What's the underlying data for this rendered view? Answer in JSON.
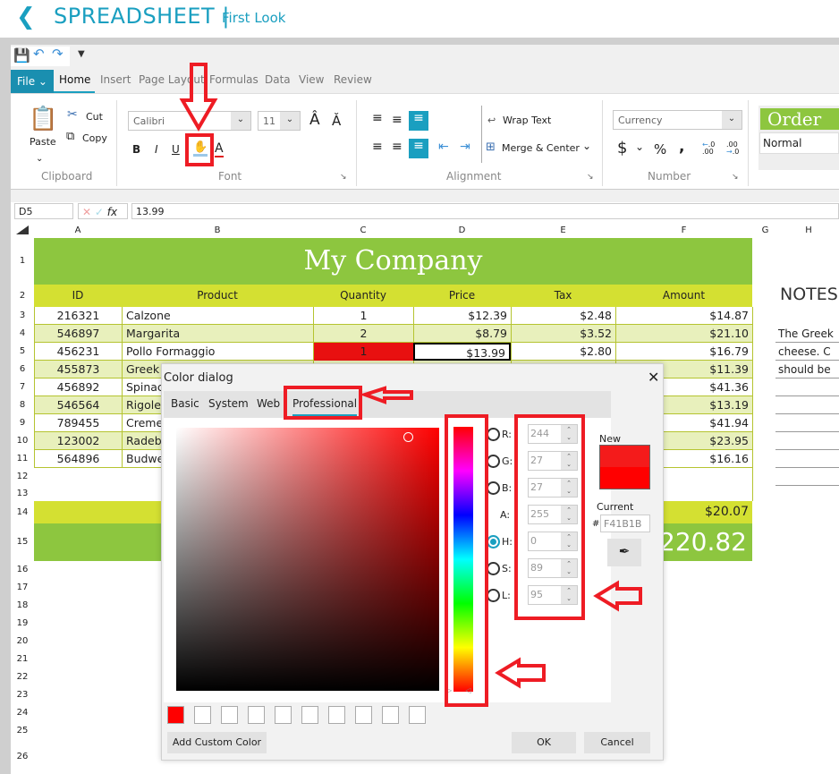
{
  "header": {
    "back_icon": "chevron-left-icon",
    "title": "SPREADSHEET |",
    "subtitle": "First Look"
  },
  "quick_access": {
    "save_icon": "save-icon",
    "undo_icon": "undo-icon",
    "redo_icon": "redo-icon",
    "customize_icon": "dropdown-icon"
  },
  "tabs": {
    "file": "File",
    "items": [
      "Home",
      "Insert",
      "Page Layout",
      "Formulas",
      "Data",
      "View",
      "Review"
    ],
    "active": "Home"
  },
  "ribbon": {
    "clipboard": {
      "label": "Clipboard",
      "paste": "Paste",
      "cut": "Cut",
      "copy": "Copy"
    },
    "font": {
      "label": "Font",
      "family": "Calibri",
      "size": "11",
      "bold": "B",
      "italic": "I",
      "underline": "U",
      "font_color": "A"
    },
    "alignment": {
      "label": "Alignment",
      "wrap": "Wrap Text",
      "merge": "Merge & Center"
    },
    "number": {
      "label": "Number",
      "format": "Currency",
      "currency": "$",
      "percent": "%",
      "comma": ","
    },
    "styles": {
      "order": "Order",
      "normal": "Normal"
    }
  },
  "formula_bar": {
    "cell_ref": "D5",
    "fx": "fx",
    "value": "13.99"
  },
  "sheet": {
    "columns": [
      "A",
      "B",
      "C",
      "D",
      "E",
      "F",
      "G",
      "H"
    ],
    "title": "My Company",
    "headers": [
      "ID",
      "Product",
      "Quantity",
      "Price",
      "Tax",
      "Amount"
    ],
    "rows": [
      [
        "216321",
        "Calzone",
        "1",
        "$12.39",
        "$2.48",
        "$14.87"
      ],
      [
        "546897",
        "Margarita",
        "2",
        "$8.79",
        "$3.52",
        "$21.10"
      ],
      [
        "456231",
        "Pollo Formaggio",
        "1",
        "$13.99",
        "$2.80",
        "$16.79"
      ],
      [
        "455873",
        "Greek",
        "",
        "",
        "",
        "$11.39"
      ],
      [
        "456892",
        "Spinac",
        "",
        "",
        "",
        "$41.36"
      ],
      [
        "546564",
        "Rigolet",
        "",
        "",
        "",
        "$13.19"
      ],
      [
        "789455",
        "Creme",
        "",
        "",
        "",
        "$41.94"
      ],
      [
        "123002",
        "Radeb",
        "",
        "",
        "",
        "$23.95"
      ],
      [
        "564896",
        "Budwe",
        "",
        "",
        "",
        "$16.16"
      ]
    ],
    "tax_total": "$20.07",
    "grand_total": "$220.82",
    "notes_title": "NOTES",
    "notes": [
      "The Greek",
      "cheese. C",
      "should be"
    ],
    "row_numbers": [
      "1",
      "2",
      "3",
      "4",
      "5",
      "6",
      "7",
      "8",
      "9",
      "10",
      "11",
      "12",
      "13",
      "14",
      "15",
      "16",
      "17",
      "18",
      "19",
      "20",
      "21",
      "22",
      "23",
      "24",
      "25",
      "26"
    ],
    "colors": {
      "title_green": "#8dc63f",
      "header_yellow": "#d4e032",
      "band": "#e8f0bc",
      "highlight_red": "#e81010"
    }
  },
  "color_dialog": {
    "title": "Color dialog",
    "tabs": [
      "Basic",
      "System",
      "Web",
      "Professional"
    ],
    "active_tab": "Professional",
    "fields": [
      {
        "label": "R:",
        "value": "244",
        "radio": true
      },
      {
        "label": "G:",
        "value": "27",
        "radio": true
      },
      {
        "label": "B:",
        "value": "27",
        "radio": true
      },
      {
        "label": "A:",
        "value": "255",
        "radio": false
      },
      {
        "label": "H:",
        "value": "0",
        "radio": true,
        "checked": true
      },
      {
        "label": "S:",
        "value": "89",
        "radio": true
      },
      {
        "label": "L:",
        "value": "95",
        "radio": true
      }
    ],
    "new_label": "New",
    "current_label": "Current",
    "hash": "#",
    "hex": "F41B1B",
    "new_color": "#f41b1b",
    "current_color": "#ff0000",
    "add_custom": "Add Custom Color",
    "ok": "OK",
    "cancel": "Cancel"
  }
}
